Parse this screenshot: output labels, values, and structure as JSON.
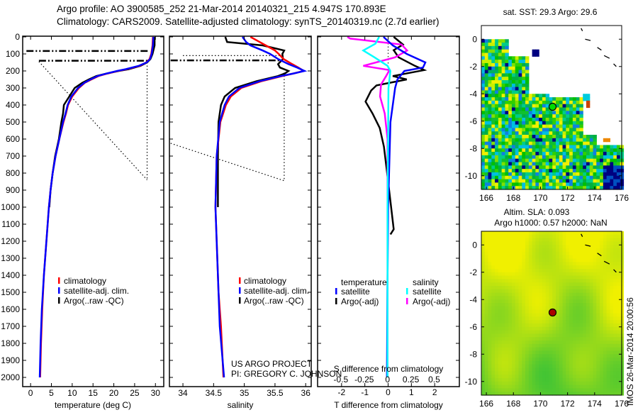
{
  "header": {
    "title_line1": "Argo profile: AO 3900585_252 21-Mar-2014 20140321_215 4.947S 170.893E",
    "title_line2": "Climatology: CARS2009. Satellite-adjusted climatology: synTS_20140319.nc (2.7d earlier)"
  },
  "credits": {
    "project": "US ARGO PROJECT",
    "pi": "PI: GREGORY C. JOHNSON",
    "imos_stamp": "IMOS 26-Mar-2014 20:00:56"
  },
  "colors": {
    "climatology": "#ff0000",
    "satellite": "#0000ff",
    "argo": "#000000",
    "sal_satellite": "#00ffff",
    "sal_argo": "#ff00ff",
    "float_marker_sla": "#aa0000",
    "float_marker_sst": "#00dd00"
  },
  "chart_data": [
    {
      "id": "temperature",
      "type": "line",
      "xlabel": "temperature (deg C)",
      "ylabel": "",
      "xlim": [
        -1.9,
        32
      ],
      "ylim": [
        2055,
        0
      ],
      "xticks": [
        "0",
        "5",
        "10",
        "15",
        "20",
        "25",
        "30"
      ],
      "yticks": [
        "0",
        "100",
        "200",
        "300",
        "400",
        "500",
        "600",
        "700",
        "800",
        "900",
        "1000",
        "1100",
        "1200",
        "1300",
        "1400",
        "1500",
        "1600",
        "1700",
        "1800",
        "1900",
        "2000"
      ],
      "legend": [
        "climatology",
        "satellite-adj. clim.",
        "Argo(..raw -QC)"
      ],
      "depth": [
        0,
        50,
        100,
        130,
        150,
        170,
        190,
        200,
        215,
        230,
        250,
        270,
        300,
        350,
        400,
        450,
        500,
        600,
        700,
        800,
        900,
        1000,
        1200,
        1400,
        1600,
        1800,
        2000
      ],
      "series": [
        {
          "name": "climatology",
          "values": [
            29.4,
            29.3,
            29.0,
            28.6,
            27.8,
            26.2,
            23.0,
            21.0,
            18.5,
            16.3,
            14.6,
            13.0,
            11.6,
            10.0,
            9.0,
            8.5,
            7.9,
            6.9,
            6.0,
            5.3,
            4.8,
            4.4,
            3.8,
            3.2,
            2.8,
            2.5,
            2.3
          ]
        },
        {
          "name": "satellite-adj. clim.",
          "values": [
            29.5,
            29.4,
            29.1,
            28.7,
            27.9,
            26.0,
            22.8,
            20.8,
            18.3,
            16.1,
            14.4,
            12.9,
            11.4,
            9.8,
            8.9,
            8.4,
            7.8,
            6.9,
            6.0,
            5.3,
            4.8,
            4.4,
            3.8,
            3.2,
            2.7,
            2.4,
            2.2
          ]
        },
        {
          "name": "Argo(..raw -QC)",
          "values": [
            29.8,
            29.8,
            29.3,
            28.8,
            28.0,
            26.4,
            23.5,
            21.2,
            18.3,
            15.8,
            14.0,
            12.4,
            10.6,
            9.3,
            8.0,
            7.8,
            7.4,
            6.8,
            5.9,
            5.3,
            4.8,
            4.5,
            null,
            null,
            null,
            null,
            null
          ]
        }
      ],
      "annotations": [
        {
          "style": "dashdot",
          "points": [
            [
              -1,
              83
            ],
            [
              28.5,
              83
            ]
          ]
        },
        {
          "style": "dashdot",
          "points": [
            [
              2,
              140
            ],
            [
              28.5,
              140
            ]
          ]
        },
        {
          "style": "dotted",
          "points": [
            [
              28,
              150
            ],
            [
              28,
              840
            ]
          ]
        },
        {
          "style": "dotted",
          "points": [
            [
              2,
              145
            ],
            [
              28,
              840
            ]
          ]
        }
      ]
    },
    {
      "id": "salinity",
      "type": "line",
      "xlabel": "salinity",
      "xlim": [
        33.78,
        36.09
      ],
      "ylim": [
        2055,
        0
      ],
      "xticks": [
        "34",
        "34.5",
        "35",
        "35.5",
        "36"
      ],
      "legend": [
        "climatology",
        "satellite-adj. clim.",
        "Argo(..raw -QC)"
      ],
      "depth": [
        0,
        30,
        50,
        80,
        100,
        130,
        160,
        180,
        200,
        215,
        230,
        260,
        300,
        350,
        400,
        500,
        700,
        1000,
        1500,
        1700,
        2000
      ],
      "series": [
        {
          "name": "climatology",
          "values": [
            35.1,
            35.25,
            35.35,
            35.5,
            35.56,
            35.64,
            35.78,
            35.88,
            35.97,
            35.8,
            35.62,
            35.28,
            34.95,
            34.78,
            34.7,
            34.61,
            34.55,
            34.53,
            34.58,
            34.62,
            34.66
          ]
        },
        {
          "name": "satellite-adj. clim.",
          "values": [
            34.97,
            35.03,
            35.1,
            35.3,
            35.42,
            35.55,
            35.72,
            35.86,
            35.98,
            35.8,
            35.6,
            35.25,
            34.92,
            34.75,
            34.68,
            34.6,
            34.55,
            34.53,
            34.58,
            34.6,
            34.67
          ]
        },
        {
          "name": "Argo(..raw -QC)",
          "values": [
            34.69,
            34.72,
            35.3,
            35.65,
            35.62,
            35.63,
            35.55,
            35.58,
            35.72,
            35.66,
            35.55,
            35.2,
            34.85,
            34.68,
            34.62,
            34.58,
            34.57,
            34.57,
            null,
            null,
            null
          ]
        }
      ],
      "annotations": [
        {
          "style": "dotted",
          "points": [
            [
              34.0,
              110
            ],
            [
              35.65,
              110
            ]
          ]
        },
        {
          "style": "dashdot",
          "points": [
            [
              33.8,
              138
            ],
            [
              35.65,
              138
            ]
          ]
        },
        {
          "style": "dotted",
          "points": [
            [
              35.65,
              210
            ],
            [
              35.65,
              845
            ]
          ]
        },
        {
          "style": "dotted",
          "points": [
            [
              33.8,
              625
            ],
            [
              35.65,
              845
            ]
          ]
        }
      ]
    },
    {
      "id": "difference",
      "type": "line",
      "xlabel": "T difference from climatology",
      "x2label": "S difference from climatology",
      "xlim": [
        -3.03,
        3.06
      ],
      "x2lim": [
        -0.75,
        0.77
      ],
      "ylim": [
        2055,
        0
      ],
      "xticks": [
        "-2",
        "-1",
        "0",
        "1",
        "2"
      ],
      "x2ticks": [
        "-0.5",
        "-0.25",
        "0",
        "0.25",
        "0.5"
      ],
      "legend_temperature_title": "temperature",
      "legend_salinity_title": "salinity",
      "legend": [
        "satellite",
        "Argo(-adj)",
        "satellite",
        "Argo(-adj)"
      ],
      "series": [
        {
          "name": "T satellite",
          "axis": "T",
          "depth": [
            0,
            50,
            100,
            150,
            180,
            200,
            250,
            300,
            500,
            1000,
            1500,
            2000
          ],
          "values": [
            -0.2,
            0.2,
            0.8,
            1.6,
            1.5,
            0.7,
            0.4,
            0.3,
            0.1,
            0.0,
            -0.03,
            -0.05
          ]
        },
        {
          "name": "T Argo(-adj)",
          "axis": "T",
          "depth": [
            0,
            45,
            78,
            120,
            170,
            195,
            230,
            250,
            285,
            315,
            380,
            450,
            535,
            645,
            780,
            1130,
            1160
          ],
          "values": [
            0.24,
            0.64,
            0.24,
            0.45,
            1.15,
            1.55,
            0.2,
            0.8,
            -0.5,
            -0.73,
            -0.97,
            -0.67,
            -0.36,
            -0.18,
            -0.06,
            0.24,
            0.1
          ]
        },
        {
          "name": "S satellite",
          "axis": "S",
          "depth": [
            0,
            40,
            80,
            120,
            170,
            200,
            300,
            1000,
            2000
          ],
          "values": [
            -0.09,
            -0.13,
            -0.26,
            -0.14,
            0.0,
            0.03,
            0.01,
            0.0,
            0.0
          ]
        },
        {
          "name": "S Argo(-adj)",
          "axis": "S",
          "depth": [
            0,
            10,
            45,
            80,
            120,
            170,
            195,
            230,
            280,
            350,
            450,
            600,
            1000,
            2000
          ],
          "values": [
            -0.43,
            -0.4,
            0.15,
            0.21,
            0.08,
            -0.26,
            0.02,
            -0.015,
            -0.07,
            -0.08,
            -0.03,
            0.0,
            0.0,
            0.0
          ]
        }
      ]
    },
    {
      "id": "sst_map",
      "type": "heatmap",
      "title": "sat. SST: 29.3 Argo: 29.6",
      "xlim": [
        165.63,
        176
      ],
      "ylim": [
        -11,
        1
      ],
      "xticks": [
        "166",
        "168",
        "170",
        "172",
        "174",
        "176"
      ],
      "yticks": [
        "0",
        "-2",
        "-4",
        "-6",
        "-8",
        "-10"
      ],
      "float_position": {
        "lon": 170.893,
        "lat": -4.947
      }
    },
    {
      "id": "sla_map",
      "type": "heatmap",
      "title": "Altim. SLA: 0.093",
      "subtitle": "Argo h1000: 0.57 h2000: NaN",
      "xlim": [
        165.63,
        176
      ],
      "ylim": [
        -11,
        1
      ],
      "xticks": [
        "166",
        "168",
        "170",
        "172",
        "174",
        "176"
      ],
      "yticks": [
        "0",
        "-2",
        "-4",
        "-6",
        "-8",
        "-10"
      ],
      "float_position": {
        "lon": 170.893,
        "lat": -4.947
      }
    }
  ]
}
